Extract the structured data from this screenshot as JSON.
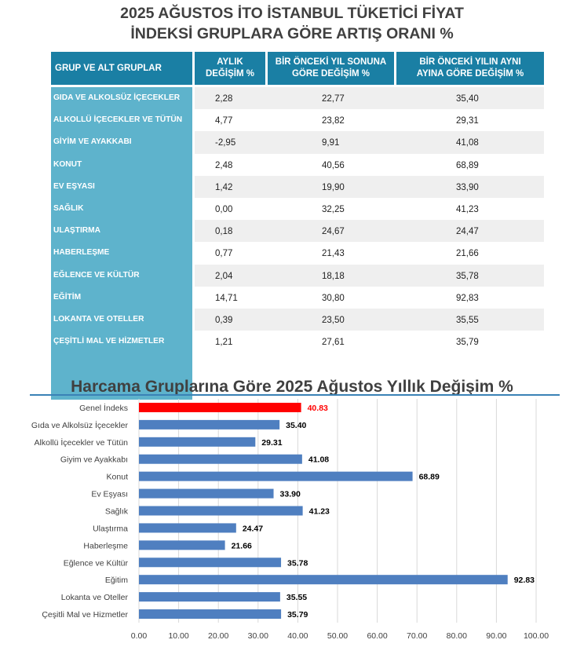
{
  "title_line1": "2025 AĞUSTOS İTO İSTANBUL TÜKETİCİ FİYAT",
  "title_line2": "İNDEKSİ GRUPLARA GÖRE ARTIŞ ORANI %",
  "table": {
    "headers": [
      "GRUP VE ALT GRUPLAR",
      "AYLIK\nDEĞİŞİM %",
      "BİR ÖNCEKİ YIL SONUNA\nGÖRE DEĞİŞİM %",
      "BİR ÖNCEKİ YILIN AYNI\nAYINA GÖRE DEĞİŞİM %"
    ],
    "rows": [
      {
        "group": "GIDA VE ALKOLSÜZ İÇECEKLER",
        "monthly": "2,28",
        "ytd": "22,77",
        "yoy": "35,40"
      },
      {
        "group": "ALKOLLÜ İÇECEKLER VE TÜTÜN",
        "monthly": "4,77",
        "ytd": "23,82",
        "yoy": "29,31"
      },
      {
        "group": "GİYİM VE AYAKKABI",
        "monthly": "-2,95",
        "ytd": "9,91",
        "yoy": "41,08"
      },
      {
        "group": "KONUT",
        "monthly": "2,48",
        "ytd": "40,56",
        "yoy": "68,89"
      },
      {
        "group": "EV EŞYASI",
        "monthly": "1,42",
        "ytd": "19,90",
        "yoy": "33,90"
      },
      {
        "group": "SAĞLIK",
        "monthly": "0,00",
        "ytd": "32,25",
        "yoy": "41,23"
      },
      {
        "group": "ULAŞTIRMA",
        "monthly": "0,18",
        "ytd": "24,67",
        "yoy": "24,47"
      },
      {
        "group": "HABERLEŞME",
        "monthly": "0,77",
        "ytd": "21,43",
        "yoy": "21,66"
      },
      {
        "group": "EĞLENCE VE KÜLTÜR",
        "monthly": "2,04",
        "ytd": "18,18",
        "yoy": "35,78"
      },
      {
        "group": "EĞİTİM",
        "monthly": "14,71",
        "ytd": "30,80",
        "yoy": "92,83"
      },
      {
        "group": "LOKANTA VE OTELLER",
        "monthly": "0,39",
        "ytd": "23,50",
        "yoy": "35,55"
      },
      {
        "group": "ÇEŞİTLİ MAL VE HİZMETLER",
        "monthly": "1,21",
        "ytd": "27,61",
        "yoy": "35,79"
      }
    ]
  },
  "chart_data": {
    "type": "bar",
    "orientation": "horizontal",
    "title": "Harcama Gruplarına Göre 2025 Ağustos  Yıllık Değişim %",
    "categories": [
      "Genel İndeks",
      "Gıda ve Alkolsüz İçecekler",
      "Alkollü İçecekler ve Tütün",
      "Giyim ve Ayakkabı",
      "Konut",
      "Ev Eşyası",
      "Sağlık",
      "Ulaştırma",
      "Haberleşme",
      "Eğlence ve Kültür",
      "Eğitim",
      "Lokanta ve Oteller",
      "Çeşitli Mal ve Hizmetler"
    ],
    "values": [
      40.83,
      35.4,
      29.31,
      41.08,
      68.89,
      33.9,
      41.23,
      24.47,
      21.66,
      35.78,
      92.83,
      35.55,
      35.79
    ],
    "value_labels": [
      "40.83",
      "35.40",
      "29.31",
      "41.08",
      "68.89",
      "33.90",
      "41.23",
      "24.47",
      "21.66",
      "35.78",
      "92.83",
      "35.55",
      "35.79"
    ],
    "xlim": [
      0,
      100
    ],
    "xticks": [
      "0.00",
      "10.00",
      "20.00",
      "30.00",
      "40.00",
      "50.00",
      "60.00",
      "70.00",
      "80.00",
      "90.00",
      "100.00"
    ],
    "highlight_index": 0,
    "colors": {
      "bar": "#4f7fc0",
      "highlight": "#ff0000",
      "grid": "#d9d9d9",
      "rule": "#3a82b6"
    },
    "grid": true
  }
}
